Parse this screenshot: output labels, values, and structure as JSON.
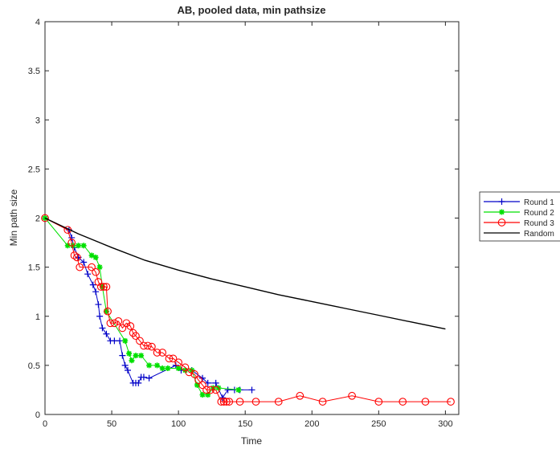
{
  "chart_data": {
    "type": "line",
    "title": "AB, pooled data, min pathsize",
    "xlabel": "Time",
    "ylabel": "Min path size",
    "xlim": [
      0,
      310
    ],
    "ylim": [
      0,
      4
    ],
    "xticks": [
      0,
      50,
      100,
      150,
      200,
      250,
      300
    ],
    "yticks": [
      0,
      0.5,
      1,
      1.5,
      2,
      2.5,
      3,
      3.5,
      4
    ],
    "xtick_labels": [
      "0",
      "50",
      "100",
      "150",
      "200",
      "250",
      "300"
    ],
    "ytick_labels": [
      "0",
      "0.5",
      "1",
      "1.5",
      "2",
      "2.5",
      "3",
      "3.5",
      "4"
    ],
    "grid": false,
    "legend_position": "outside right",
    "series": [
      {
        "name": "Round 1",
        "color": "#0000c8",
        "marker": "plus",
        "x": [
          0,
          18,
          20,
          22,
          25,
          29,
          32,
          36,
          38,
          40,
          41,
          43,
          46,
          49,
          52,
          56,
          58,
          60,
          62,
          66,
          68,
          70,
          72,
          74,
          78,
          98,
          102,
          110,
          118,
          122,
          128,
          133,
          137,
          142,
          146,
          155
        ],
        "y": [
          2.0,
          1.88,
          1.8,
          1.7,
          1.6,
          1.55,
          1.43,
          1.32,
          1.25,
          1.12,
          1.0,
          0.88,
          0.82,
          0.75,
          0.75,
          0.75,
          0.6,
          0.5,
          0.45,
          0.32,
          0.32,
          0.32,
          0.38,
          0.38,
          0.37,
          0.5,
          0.45,
          0.45,
          0.37,
          0.32,
          0.32,
          0.17,
          0.25,
          0.25,
          0.25,
          0.25
        ]
      },
      {
        "name": "Round 2",
        "color": "#00e000",
        "marker": "asterisk",
        "x": [
          0,
          17,
          21,
          25,
          29,
          35,
          38,
          41,
          43,
          46,
          60,
          63,
          65,
          68,
          72,
          78,
          84,
          88,
          92,
          100,
          105,
          110,
          114,
          118,
          122,
          126,
          130,
          145
        ],
        "y": [
          2.0,
          1.72,
          1.72,
          1.72,
          1.72,
          1.62,
          1.6,
          1.5,
          1.3,
          1.05,
          0.75,
          0.62,
          0.55,
          0.6,
          0.6,
          0.5,
          0.5,
          0.47,
          0.47,
          0.47,
          0.45,
          0.45,
          0.3,
          0.2,
          0.2,
          0.27,
          0.27,
          0.25
        ]
      },
      {
        "name": "Round 3",
        "color": "#ff0000",
        "marker": "circle",
        "x": [
          0,
          17,
          20,
          22,
          24,
          26,
          35,
          38,
          40,
          42,
          44,
          46,
          47,
          49,
          52,
          55,
          58,
          61,
          64,
          66,
          68,
          71,
          74,
          77,
          80,
          84,
          88,
          93,
          96,
          100,
          105,
          108,
          112,
          115,
          118,
          121,
          124,
          128,
          132,
          134,
          136,
          138,
          146,
          158,
          175,
          191,
          208,
          230,
          250,
          268,
          285,
          304
        ],
        "y": [
          2.0,
          1.88,
          1.75,
          1.62,
          1.6,
          1.5,
          1.5,
          1.45,
          1.35,
          1.3,
          1.3,
          1.3,
          1.05,
          0.93,
          0.93,
          0.95,
          0.88,
          0.93,
          0.9,
          0.83,
          0.8,
          0.75,
          0.7,
          0.7,
          0.69,
          0.63,
          0.63,
          0.57,
          0.57,
          0.53,
          0.48,
          0.43,
          0.41,
          0.35,
          0.3,
          0.25,
          0.25,
          0.25,
          0.13,
          0.13,
          0.13,
          0.13,
          0.13,
          0.13,
          0.13,
          0.19,
          0.13,
          0.19,
          0.13,
          0.13,
          0.13,
          0.13
        ]
      },
      {
        "name": "Random",
        "color": "#000000",
        "marker": "none",
        "x": [
          0,
          25,
          50,
          75,
          100,
          125,
          150,
          175,
          200,
          225,
          250,
          275,
          300
        ],
        "y": [
          2.0,
          1.84,
          1.7,
          1.57,
          1.47,
          1.38,
          1.3,
          1.22,
          1.15,
          1.08,
          1.01,
          0.94,
          0.87
        ]
      }
    ]
  }
}
